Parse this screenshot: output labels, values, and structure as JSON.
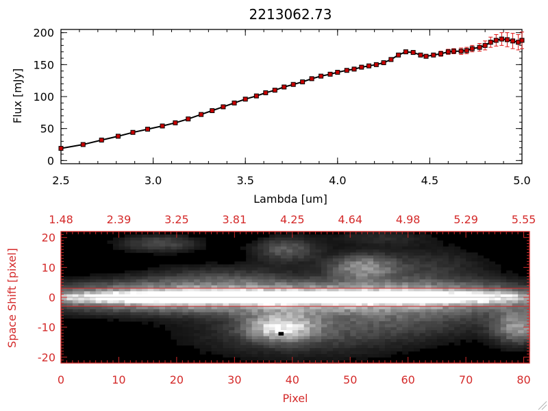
{
  "colors": {
    "accent": "#d42a2a",
    "line": "#000000",
    "marker": "#c80000",
    "errorbar": "#e01010",
    "background": "#ffffff"
  },
  "chart_data": [
    {
      "type": "line",
      "title": "2213062.73",
      "xlabel": "Lambda [um]",
      "ylabel": "Flux [mJy]",
      "xlim": [
        2.5,
        5.0
      ],
      "ylim": [
        -5,
        205
      ],
      "xticks": [
        "2.5",
        "3.0",
        "3.5",
        "4.0",
        "4.5",
        "5.0"
      ],
      "xtick_values": [
        2.5,
        3.0,
        3.5,
        4.0,
        4.5,
        5.0
      ],
      "yticks": [
        "0",
        "50",
        "100",
        "150",
        "200"
      ],
      "ytick_values": [
        0,
        50,
        100,
        150,
        200
      ],
      "series": [
        {
          "name": "flux",
          "x": [
            2.5,
            2.62,
            2.72,
            2.81,
            2.89,
            2.97,
            3.05,
            3.12,
            3.19,
            3.26,
            3.32,
            3.38,
            3.44,
            3.5,
            3.56,
            3.61,
            3.66,
            3.71,
            3.76,
            3.81,
            3.86,
            3.91,
            3.96,
            4.0,
            4.05,
            4.09,
            4.13,
            4.17,
            4.21,
            4.25,
            4.29,
            4.33,
            4.37,
            4.41,
            4.45,
            4.48,
            4.52,
            4.56,
            4.6,
            4.63,
            4.67,
            4.7,
            4.73,
            4.77,
            4.8,
            4.83,
            4.86,
            4.89,
            4.92,
            4.95,
            4.98,
            5.0
          ],
          "y": [
            19,
            25,
            32,
            38,
            44,
            49,
            54,
            59,
            65,
            72,
            78,
            84,
            90,
            96,
            101,
            106,
            110,
            115,
            119,
            123,
            128,
            132,
            135,
            138,
            141,
            143,
            146,
            148,
            150,
            153,
            158,
            165,
            170,
            169,
            165,
            163,
            165,
            167,
            170,
            171,
            171,
            172,
            175,
            177,
            180,
            185,
            188,
            190,
            189,
            187,
            185,
            188
          ],
          "yerr": [
            2,
            2,
            2,
            3,
            2,
            2,
            2,
            3,
            3,
            2,
            2,
            2,
            2,
            2,
            2,
            2,
            2,
            2,
            2,
            2,
            2,
            2,
            2,
            2,
            2,
            2,
            2,
            2,
            2,
            2,
            3,
            3,
            3,
            3,
            3,
            3,
            3,
            4,
            4,
            4,
            5,
            5,
            5,
            6,
            7,
            8,
            9,
            10,
            11,
            12,
            12,
            13
          ]
        }
      ]
    },
    {
      "type": "heatmap",
      "xlabel": "Pixel",
      "ylabel": "Space Shift [pixel]",
      "xlim": [
        0,
        81
      ],
      "ylim": [
        -22,
        22
      ],
      "xticks": [
        "0",
        "10",
        "20",
        "30",
        "40",
        "50",
        "60",
        "70",
        "80"
      ],
      "xtick_values": [
        0,
        10,
        20,
        30,
        40,
        50,
        60,
        70,
        80
      ],
      "yticks": [
        "20",
        "10",
        "0",
        "-10",
        "-20"
      ],
      "ytick_values": [
        20,
        10,
        0,
        -10,
        -20
      ],
      "top_ticks": [
        "1.48",
        "2.39",
        "3.25",
        "3.81",
        "4.25",
        "4.64",
        "4.98",
        "5.29",
        "5.55"
      ],
      "top_tick_values": [
        0,
        10,
        20,
        30,
        40,
        50,
        60,
        70,
        80
      ],
      "hlines": [
        3,
        -3
      ],
      "blobs": [
        {
          "cx": 40,
          "cy": 0,
          "sx": 36,
          "sy": 3.5,
          "a": 0.85
        },
        {
          "cx": 40,
          "cy": 0,
          "sx": 33,
          "sy": 1.2,
          "a": 1.0
        },
        {
          "cx": 38,
          "cy": -10,
          "sx": 4,
          "sy": 3,
          "a": 0.75
        },
        {
          "cx": 42,
          "cy": -12,
          "sx": 14,
          "sy": 6,
          "a": 0.25
        },
        {
          "cx": 52,
          "cy": 10,
          "sx": 4,
          "sy": 3,
          "a": 0.5
        },
        {
          "cx": 39,
          "cy": 16,
          "sx": 4,
          "sy": 3,
          "a": 0.35
        },
        {
          "cx": 17,
          "cy": 18,
          "sx": 5,
          "sy": 2,
          "a": 0.3
        },
        {
          "cx": 79,
          "cy": -10,
          "sx": 3,
          "sy": 4,
          "a": 0.55
        },
        {
          "cx": 63,
          "cy": 10,
          "sx": 8,
          "sy": 5,
          "a": 0.2
        },
        {
          "cx": 28,
          "cy": 7,
          "sx": 10,
          "sy": 3,
          "a": 0.2
        },
        {
          "cx": 60,
          "cy": -8,
          "sx": 12,
          "sy": 4,
          "a": 0.2
        },
        {
          "cx": 55,
          "cy": 20,
          "sx": 6,
          "sy": 2,
          "a": 0.15
        }
      ]
    }
  ]
}
